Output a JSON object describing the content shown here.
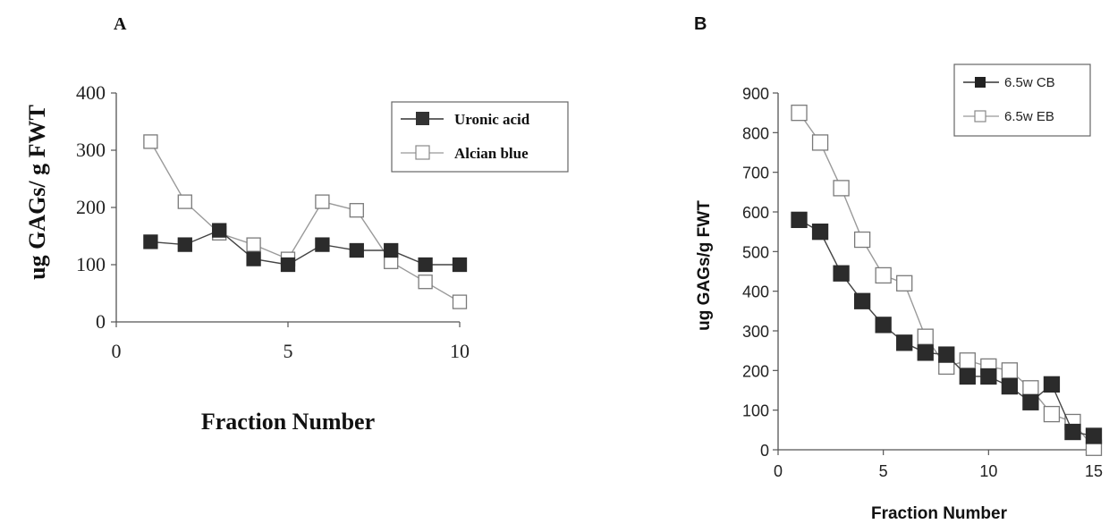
{
  "chart_data": [
    {
      "panel_label": "A",
      "type": "line",
      "title": "",
      "xlabel": "Fraction Number",
      "ylabel": "ug GAGs/ g FWT",
      "xlim": [
        0,
        10
      ],
      "ylim": [
        0,
        400
      ],
      "xticks": [
        "0",
        "5",
        "10"
      ],
      "yticks": [
        "0",
        "100",
        "200",
        "300",
        "400"
      ],
      "grid": false,
      "legend": "top-right",
      "x": [
        1,
        2,
        3,
        4,
        5,
        6,
        7,
        8,
        9,
        10
      ],
      "series": [
        {
          "name": "Uronic acid",
          "marker": "filled-square",
          "color": "#333333",
          "values": [
            140,
            135,
            160,
            110,
            100,
            135,
            125,
            125,
            100,
            100
          ]
        },
        {
          "name": "Alcian blue",
          "marker": "open-square",
          "color": "#aaaaaa",
          "values": [
            315,
            210,
            155,
            135,
            110,
            210,
            195,
            105,
            70,
            35
          ]
        }
      ]
    },
    {
      "panel_label": "B",
      "type": "line",
      "title": "",
      "xlabel": "Fraction Number",
      "ylabel": "ug GAGs/g FWT",
      "xlim": [
        0,
        15
      ],
      "ylim": [
        0,
        900
      ],
      "xticks": [
        "0",
        "5",
        "10",
        "15"
      ],
      "yticks": [
        "0",
        "100",
        "200",
        "300",
        "400",
        "500",
        "600",
        "700",
        "800",
        "900"
      ],
      "grid": false,
      "legend": "top-right",
      "x": [
        1,
        2,
        3,
        4,
        5,
        6,
        7,
        8,
        9,
        10,
        11,
        12,
        13,
        14,
        15
      ],
      "series": [
        {
          "name": "6.5w CB",
          "marker": "filled-square",
          "color": "#333333",
          "values": [
            580,
            550,
            445,
            375,
            315,
            270,
            245,
            240,
            185,
            185,
            160,
            120,
            165,
            45,
            35
          ]
        },
        {
          "name": "6.5w EB",
          "marker": "open-square",
          "color": "#aaaaaa",
          "values": [
            850,
            775,
            660,
            530,
            440,
            420,
            285,
            210,
            225,
            210,
            200,
            155,
            90,
            70,
            5
          ]
        }
      ]
    }
  ]
}
